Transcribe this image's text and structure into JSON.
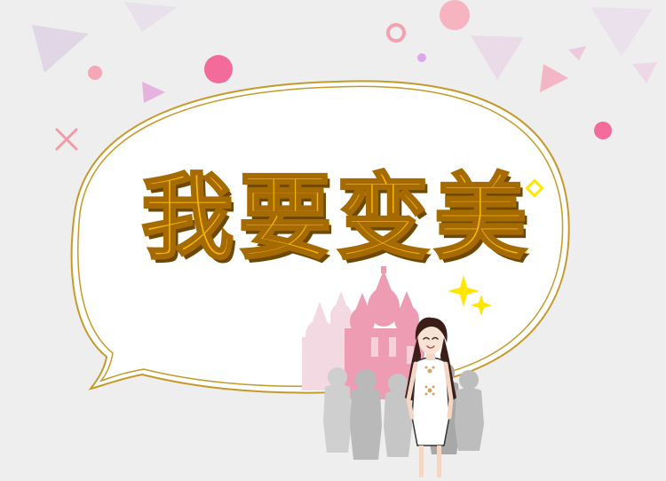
{
  "banner": {
    "title": "我要变美"
  },
  "colors": {
    "background": "#efeeee",
    "bubble_border": "#c49a2a",
    "title_fill": "#f5b400",
    "accent_pink": "#f26b9a",
    "sparkle_yellow": "#ffe600"
  },
  "icons": {
    "sparkle": "sparkle-icon",
    "cross": "cross-icon"
  }
}
